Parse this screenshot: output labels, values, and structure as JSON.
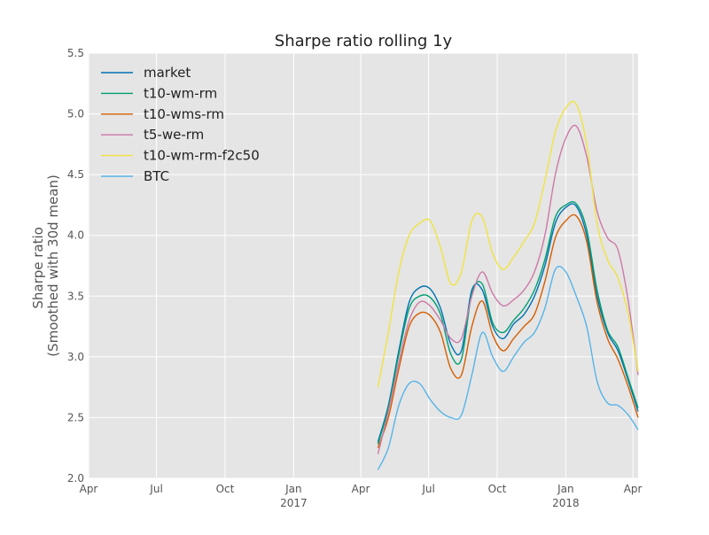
{
  "chart_data": {
    "type": "line",
    "title": "Sharpe ratio rolling 1y",
    "ylabel_lines": [
      "Sharpe ratio",
      "(Smoothed with 30d mean)"
    ],
    "xlabel": "",
    "ylim": [
      2.0,
      5.5
    ],
    "xlim": [
      "2016-04-01",
      "2018-04-08"
    ],
    "grid": true,
    "legend_position": "top-left",
    "background": "#e5e5e5",
    "x_ticks": [
      {
        "date": "2016-04-01",
        "label": "Apr",
        "sublabel": ""
      },
      {
        "date": "2016-07-01",
        "label": "Jul",
        "sublabel": ""
      },
      {
        "date": "2016-10-01",
        "label": "Oct",
        "sublabel": ""
      },
      {
        "date": "2017-01-01",
        "label": "Jan",
        "sublabel": "2017"
      },
      {
        "date": "2017-04-01",
        "label": "Apr",
        "sublabel": ""
      },
      {
        "date": "2017-07-01",
        "label": "Jul",
        "sublabel": ""
      },
      {
        "date": "2017-10-01",
        "label": "Oct",
        "sublabel": ""
      },
      {
        "date": "2018-01-01",
        "label": "Jan",
        "sublabel": "2018"
      },
      {
        "date": "2018-04-01",
        "label": "Apr",
        "sublabel": ""
      }
    ],
    "y_ticks": [
      2.0,
      2.5,
      3.0,
      3.5,
      4.0,
      4.5,
      5.0,
      5.5
    ],
    "x": [
      "2017-04-24",
      "2017-05-08",
      "2017-05-22",
      "2017-06-05",
      "2017-06-19",
      "2017-07-03",
      "2017-07-17",
      "2017-07-31",
      "2017-08-14",
      "2017-08-28",
      "2017-09-11",
      "2017-09-25",
      "2017-10-09",
      "2017-10-23",
      "2017-11-06",
      "2017-11-20",
      "2017-12-04",
      "2017-12-18",
      "2018-01-01",
      "2018-01-15",
      "2018-01-29",
      "2018-02-12",
      "2018-02-26",
      "2018-03-12",
      "2018-03-26",
      "2018-04-08"
    ],
    "series": [
      {
        "name": "market",
        "color": "#0072b2",
        "values": [
          2.3,
          2.6,
          3.05,
          3.45,
          3.57,
          3.56,
          3.4,
          3.1,
          3.05,
          3.55,
          3.55,
          3.25,
          3.15,
          3.27,
          3.35,
          3.5,
          3.75,
          4.1,
          4.23,
          4.24,
          4.0,
          3.5,
          3.2,
          3.05,
          2.8,
          2.55
        ]
      },
      {
        "name": "t10-wm-rm",
        "color": "#009e73",
        "values": [
          2.28,
          2.58,
          3.02,
          3.4,
          3.5,
          3.49,
          3.35,
          3.02,
          2.98,
          3.52,
          3.6,
          3.28,
          3.2,
          3.3,
          3.4,
          3.55,
          3.8,
          4.15,
          4.25,
          4.26,
          4.05,
          3.55,
          3.22,
          3.08,
          2.82,
          2.58
        ]
      },
      {
        "name": "t10-wms-rm",
        "color": "#d55e00",
        "values": [
          2.25,
          2.5,
          2.9,
          3.25,
          3.36,
          3.34,
          3.2,
          2.9,
          2.85,
          3.25,
          3.46,
          3.18,
          3.05,
          3.15,
          3.25,
          3.35,
          3.62,
          3.98,
          4.12,
          4.16,
          3.95,
          3.45,
          3.15,
          2.98,
          2.75,
          2.5
        ]
      },
      {
        "name": "t5-we-rm",
        "color": "#cc79a7",
        "values": [
          2.2,
          2.55,
          2.95,
          3.3,
          3.45,
          3.42,
          3.3,
          3.15,
          3.15,
          3.5,
          3.7,
          3.52,
          3.42,
          3.47,
          3.55,
          3.7,
          4.0,
          4.5,
          4.8,
          4.9,
          4.65,
          4.2,
          3.98,
          3.88,
          3.45,
          2.85
        ]
      },
      {
        "name": "t10-wm-rm-f2c50",
        "color": "#f0e442",
        "values": [
          2.75,
          3.2,
          3.7,
          4.0,
          4.1,
          4.12,
          3.9,
          3.6,
          3.7,
          4.12,
          4.15,
          3.85,
          3.72,
          3.82,
          3.95,
          4.1,
          4.45,
          4.85,
          5.05,
          5.08,
          4.75,
          4.1,
          3.8,
          3.65,
          3.35,
          2.88
        ]
      },
      {
        "name": "BTC",
        "color": "#56b4e9",
        "values": [
          2.07,
          2.25,
          2.6,
          2.78,
          2.78,
          2.65,
          2.55,
          2.5,
          2.52,
          2.85,
          3.2,
          3.0,
          2.88,
          3.0,
          3.12,
          3.2,
          3.4,
          3.72,
          3.7,
          3.5,
          3.25,
          2.8,
          2.62,
          2.6,
          2.52,
          2.4
        ]
      }
    ]
  }
}
